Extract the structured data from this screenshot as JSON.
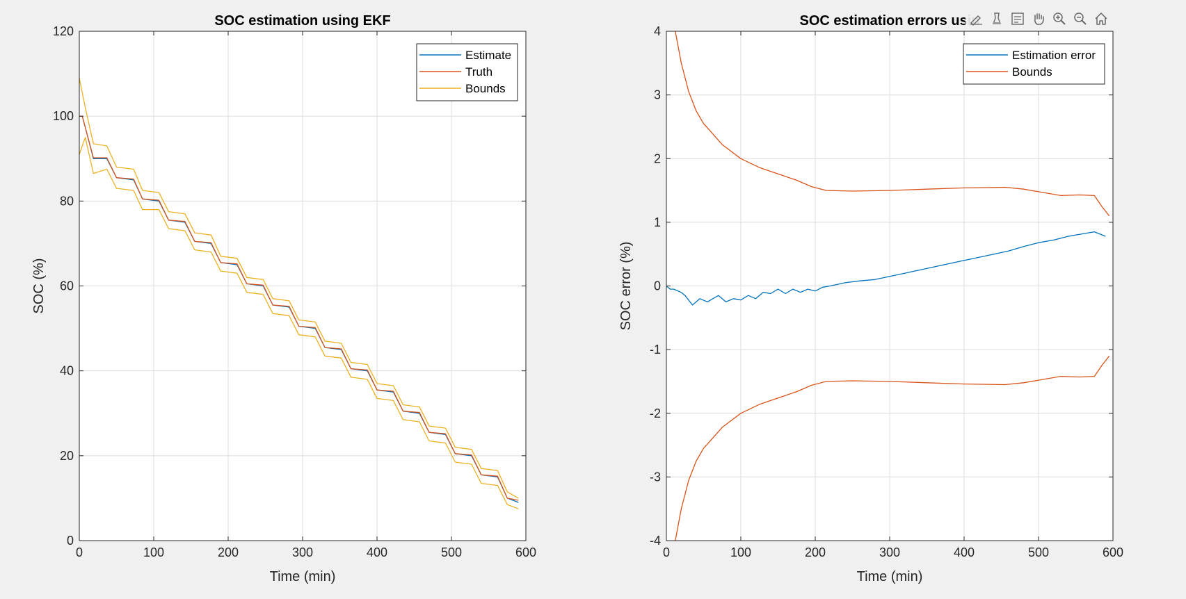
{
  "window": {
    "toolbar_icons": [
      "brush-edit-icon",
      "data-cursor-icon",
      "legend-toggle-icon",
      "pan-hand-icon",
      "zoom-in-icon",
      "zoom-out-icon",
      "home-restore-icon"
    ]
  },
  "colors": {
    "estimate": "#0072BD",
    "truth": "#D95319",
    "bounds": "#EDB120",
    "grid": "#dcdcdc",
    "axes_bg": "#ffffff",
    "figure_bg": "#f0f0f0"
  },
  "chart_data": [
    {
      "type": "line",
      "title": "SOC estimation using EKF",
      "xlabel": "Time (min)",
      "ylabel": "SOC (%)",
      "xlim": [
        0,
        600
      ],
      "ylim": [
        0,
        120
      ],
      "xticks": [
        0,
        100,
        200,
        300,
        400,
        500,
        600
      ],
      "yticks": [
        0,
        20,
        40,
        60,
        80,
        100,
        120
      ],
      "grid": true,
      "legend": {
        "location": "top-right",
        "entries": [
          "Estimate",
          "Truth",
          "Bounds"
        ]
      },
      "series": [
        {
          "name": "Estimate",
          "color": "#0072BD",
          "x": [
            0,
            4,
            19,
            37,
            50,
            73,
            85,
            107,
            120,
            142,
            155,
            177,
            190,
            212,
            225,
            247,
            260,
            282,
            295,
            317,
            330,
            352,
            365,
            387,
            400,
            422,
            435,
            457,
            470,
            492,
            505,
            527,
            540,
            562,
            575,
            590
          ],
          "y": [
            100,
            100,
            90,
            90,
            85.5,
            85,
            80.5,
            80,
            75.5,
            75,
            70.5,
            70,
            65.5,
            65,
            60.5,
            60,
            55.5,
            55,
            50.5,
            50,
            45.5,
            45,
            40.5,
            40,
            35.5,
            35,
            30.5,
            30,
            25.5,
            25,
            20.5,
            20,
            15.5,
            15,
            10,
            9
          ]
        },
        {
          "name": "Truth",
          "color": "#D95319",
          "x": [
            0,
            4,
            19,
            37,
            50,
            73,
            85,
            107,
            120,
            142,
            155,
            177,
            190,
            212,
            225,
            247,
            260,
            282,
            295,
            317,
            330,
            352,
            365,
            387,
            400,
            422,
            435,
            457,
            470,
            492,
            505,
            527,
            540,
            562,
            575,
            590
          ],
          "y": [
            100,
            100,
            90.2,
            90.2,
            85.5,
            85.2,
            80.5,
            80.2,
            75.5,
            75.2,
            70.5,
            70.2,
            65.5,
            65.2,
            60.5,
            60.2,
            55.5,
            55.2,
            50.5,
            50.2,
            45.5,
            45.2,
            40.5,
            40.2,
            35.5,
            35.2,
            30.5,
            30.2,
            25.5,
            25.2,
            20.5,
            20.2,
            15.5,
            15.2,
            10,
            9.5
          ]
        },
        {
          "name": "Bounds",
          "color": "#EDB120",
          "x": [
            0,
            8,
            19,
            37,
            50,
            73,
            85,
            107,
            120,
            142,
            155,
            177,
            190,
            212,
            225,
            247,
            260,
            282,
            295,
            317,
            330,
            352,
            365,
            387,
            400,
            422,
            435,
            457,
            470,
            492,
            505,
            527,
            540,
            562,
            575,
            590
          ],
          "y": [
            109,
            102,
            93.5,
            93,
            88,
            87.5,
            82.5,
            82,
            77.5,
            77,
            72.5,
            72,
            67,
            66.5,
            62,
            61.5,
            57,
            56.5,
            52,
            51.5,
            47,
            46.5,
            42,
            41.5,
            37,
            36.5,
            32,
            31.5,
            27,
            26.5,
            22,
            21.5,
            17,
            16.5,
            11.5,
            10
          ]
        },
        {
          "name": "",
          "color": "#EDB120",
          "x": [
            0,
            8,
            19,
            37,
            50,
            73,
            85,
            107,
            120,
            142,
            155,
            177,
            190,
            212,
            225,
            247,
            260,
            282,
            295,
            317,
            330,
            352,
            365,
            387,
            400,
            422,
            435,
            457,
            470,
            492,
            505,
            527,
            540,
            562,
            575,
            590
          ],
          "y": [
            91,
            95,
            86.5,
            87.5,
            83,
            82.5,
            78,
            78,
            73.5,
            73,
            68.5,
            68,
            63.5,
            63,
            58.5,
            58,
            53.5,
            53,
            48.5,
            48,
            43.5,
            43,
            38.5,
            38,
            33.5,
            33,
            28.5,
            28,
            23.5,
            23,
            18.5,
            18,
            13.5,
            13,
            8.5,
            7.5
          ]
        }
      ]
    },
    {
      "type": "line",
      "title": "SOC estimation errors usin",
      "xlabel": "Time (min)",
      "ylabel": "SOC error (%)",
      "xlim": [
        0,
        600
      ],
      "ylim": [
        -4,
        4
      ],
      "xticks": [
        0,
        100,
        200,
        300,
        400,
        500,
        600
      ],
      "yticks": [
        -4,
        -3,
        -2,
        -1,
        0,
        1,
        2,
        3,
        4
      ],
      "grid": true,
      "legend": {
        "location": "top-right",
        "entries": [
          "Estimation error",
          "Bounds"
        ]
      },
      "series": [
        {
          "name": "Estimation error",
          "color": "#0072BD",
          "x": [
            0,
            5,
            10,
            20,
            25,
            35,
            45,
            55,
            70,
            80,
            90,
            100,
            110,
            120,
            130,
            140,
            150,
            160,
            170,
            180,
            190,
            200,
            210,
            220,
            240,
            260,
            280,
            300,
            320,
            340,
            360,
            380,
            400,
            420,
            440,
            460,
            480,
            500,
            520,
            540,
            560,
            575,
            590
          ],
          "y": [
            0,
            -0.05,
            -0.05,
            -0.1,
            -0.15,
            -0.3,
            -0.2,
            -0.25,
            -0.15,
            -0.25,
            -0.2,
            -0.22,
            -0.15,
            -0.2,
            -0.1,
            -0.12,
            -0.05,
            -0.12,
            -0.05,
            -0.1,
            -0.05,
            -0.08,
            -0.02,
            0.0,
            0.05,
            0.08,
            0.1,
            0.15,
            0.2,
            0.25,
            0.3,
            0.35,
            0.4,
            0.45,
            0.5,
            0.55,
            0.62,
            0.68,
            0.72,
            0.78,
            0.82,
            0.85,
            0.78
          ]
        },
        {
          "name": "Bounds",
          "color": "#D95319",
          "x": [
            12,
            20,
            30,
            40,
            50,
            60,
            75,
            100,
            125,
            150,
            175,
            195,
            215,
            250,
            300,
            350,
            400,
            455,
            480,
            500,
            530,
            555,
            575,
            585,
            595
          ],
          "y": [
            4.0,
            3.5,
            3.05,
            2.75,
            2.55,
            2.42,
            2.22,
            2.0,
            1.86,
            1.76,
            1.66,
            1.56,
            1.5,
            1.49,
            1.5,
            1.52,
            1.54,
            1.55,
            1.52,
            1.48,
            1.42,
            1.43,
            1.42,
            1.25,
            1.1
          ]
        },
        {
          "name": "",
          "color": "#D95319",
          "x": [
            12,
            20,
            30,
            40,
            50,
            60,
            75,
            100,
            125,
            150,
            175,
            195,
            215,
            250,
            300,
            350,
            400,
            455,
            480,
            500,
            530,
            555,
            575,
            585,
            595
          ],
          "y": [
            -4.0,
            -3.5,
            -3.05,
            -2.75,
            -2.55,
            -2.42,
            -2.22,
            -2.0,
            -1.86,
            -1.76,
            -1.66,
            -1.56,
            -1.5,
            -1.49,
            -1.5,
            -1.52,
            -1.54,
            -1.55,
            -1.52,
            -1.48,
            -1.42,
            -1.43,
            -1.42,
            -1.25,
            -1.1
          ]
        }
      ]
    }
  ]
}
